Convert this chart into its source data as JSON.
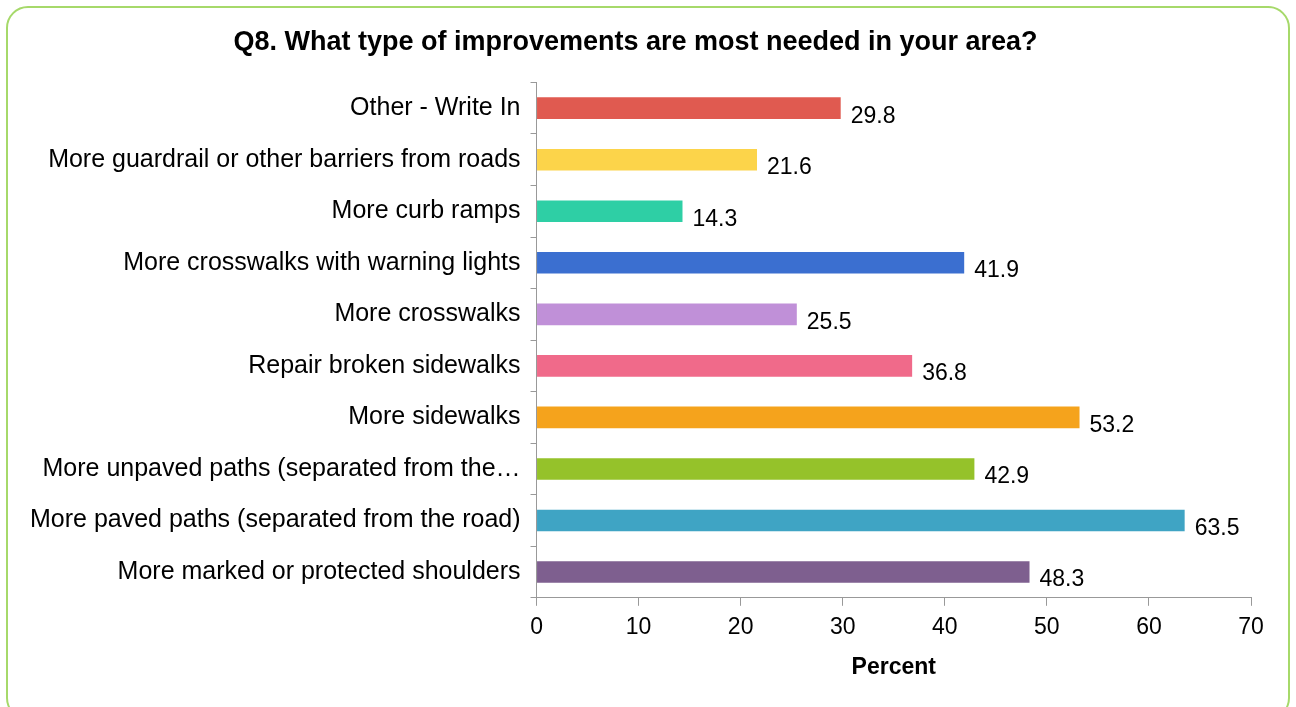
{
  "chart_data": {
    "type": "bar",
    "orientation": "horizontal",
    "title": "Q8. What type of improvements are most needed in your area?",
    "xlabel": "Percent",
    "categories": [
      "Other - Write In",
      "More guardrail or other barriers from roads",
      "More curb ramps",
      "More crosswalks with warning lights",
      "More crosswalks",
      "Repair broken sidewalks",
      "More sidewalks",
      "More unpaved paths (separated from the…",
      "More paved paths (separated from the road)",
      "More marked or protected shoulders"
    ],
    "values": [
      29.8,
      21.6,
      14.3,
      41.9,
      25.5,
      36.8,
      53.2,
      42.9,
      63.5,
      48.3
    ],
    "colors": [
      "#e05a50",
      "#fcd44a",
      "#2ecfa5",
      "#3b6fd0",
      "#c090d8",
      "#f06a8a",
      "#f5a31c",
      "#95c22a",
      "#3fa4c4",
      "#7e5f8f"
    ],
    "xlim": [
      0,
      70
    ],
    "xticks": [
      0,
      10,
      20,
      30,
      40,
      50,
      60,
      70
    ],
    "grid": false,
    "data_labels": true,
    "legend": false
  }
}
